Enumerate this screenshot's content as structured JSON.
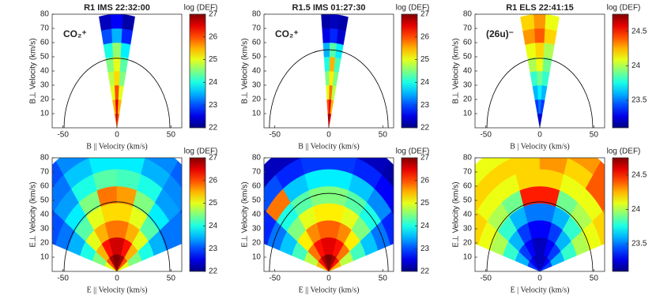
{
  "chart_data": [
    {
      "type": "polar_heatmap",
      "title": "R1 IMS 22:32:00",
      "annotation": "CO₂⁺",
      "xlabel": "B || Velocity (km/s)",
      "ylabel": "B⊥ Velocity (km/s)",
      "xlim": [
        -60,
        60
      ],
      "ylim": [
        0,
        80
      ],
      "xticks": [
        -50,
        0,
        50
      ],
      "yticks": [
        10,
        20,
        30,
        40,
        50,
        60,
        70,
        80
      ],
      "angle_edges": [
        -12,
        -4,
        4,
        12
      ],
      "radius_edges": [
        0,
        10,
        20,
        30,
        40,
        50,
        60,
        70,
        80
      ],
      "values": [
        [
          26,
          26.8,
          26
        ],
        [
          25.5,
          26.5,
          25.5
        ],
        [
          25,
          26,
          25
        ],
        [
          24.8,
          25.3,
          24.5
        ],
        [
          24.5,
          25,
          24.3
        ],
        [
          24,
          24.6,
          23.8
        ],
        [
          23,
          23.5,
          22.8
        ],
        [
          22.3,
          22.6,
          22.2
        ]
      ],
      "circle_radius": 49,
      "colorbar": {
        "label": "log (DEF)",
        "lim": [
          22,
          27
        ],
        "ticks": [
          22,
          23,
          24,
          25,
          26,
          27
        ]
      }
    },
    {
      "type": "polar_heatmap",
      "title": "R1.5 IMS 01:27:30",
      "annotation": "CO₂⁺",
      "xlabel": "B || Velocity (km/s)",
      "ylabel": "B⊥ Velocity (km/s)",
      "xlim": [
        -60,
        60
      ],
      "ylim": [
        0,
        80
      ],
      "xticks": [
        -50,
        0,
        50
      ],
      "yticks": [
        10,
        20,
        30,
        40,
        50,
        60,
        70,
        80
      ],
      "angle_edges": [
        -5,
        1,
        7,
        13
      ],
      "radius_edges": [
        0,
        10,
        20,
        30,
        40,
        50,
        60,
        70,
        80
      ],
      "values": [
        [
          26.8,
          27,
          26.5
        ],
        [
          26,
          26.5,
          25.5
        ],
        [
          25,
          25.8,
          24.8
        ],
        [
          24.5,
          25.2,
          24.5
        ],
        [
          24,
          25.5,
          24.2
        ],
        [
          23.5,
          24.3,
          23.8
        ],
        [
          22.5,
          22.8,
          22.4
        ],
        [
          22.2,
          22.3,
          22.2
        ]
      ],
      "circle_radius": 55,
      "colorbar": {
        "label": "log (DEF)",
        "lim": [
          22,
          27
        ],
        "ticks": [
          22,
          23,
          24,
          25,
          26,
          27
        ]
      }
    },
    {
      "type": "polar_heatmap",
      "title": "R1 ELS 22:41:15",
      "annotation": "(26u)⁻",
      "xlabel": "B | Velocity (km/s)",
      "ylabel": "B⊥ Velocity (km/s)",
      "xlim": [
        -60,
        60
      ],
      "ylim": [
        0,
        80
      ],
      "xticks": [
        -50,
        0,
        50
      ],
      "yticks": [
        10,
        20,
        30,
        40,
        50,
        60,
        70,
        80
      ],
      "angle_edges": [
        -13,
        -4,
        4,
        13
      ],
      "radius_edges": [
        0,
        10,
        20,
        30,
        40,
        50,
        60,
        70,
        80
      ],
      "values": [
        [
          23.2,
          23.3,
          23.2
        ],
        [
          23.4,
          23.5,
          23.4
        ],
        [
          23.6,
          23.7,
          23.6
        ],
        [
          23.8,
          23.9,
          23.8
        ],
        [
          24,
          24.1,
          23.9
        ],
        [
          24.1,
          24.2,
          24
        ],
        [
          24.3,
          24.4,
          24.2
        ],
        [
          24.2,
          24.3,
          24.1
        ]
      ],
      "circle_radius": 49,
      "colorbar": {
        "label": "log (DEF)",
        "lim": [
          23.1,
          24.75
        ],
        "ticks": [
          23.5,
          24,
          24.5
        ]
      }
    },
    {
      "type": "polar_heatmap",
      "xlabel": "E || Velocity (km/s)",
      "ylabel": "E⊥ Velocity (km/s)",
      "xlim": [
        -60,
        60
      ],
      "ylim": [
        0,
        80
      ],
      "xticks": [
        -50,
        0,
        50
      ],
      "yticks": [
        10,
        20,
        30,
        40,
        50,
        60,
        70,
        80
      ],
      "angle_edges": [
        -72,
        -54,
        -36,
        -18,
        0,
        18,
        36,
        54,
        72
      ],
      "radius_edges": [
        0,
        12,
        24,
        36,
        48,
        60,
        72,
        84,
        96
      ],
      "values": [
        [
          25,
          26,
          26.8,
          27,
          27,
          26.8,
          26,
          25
        ],
        [
          24.5,
          25.5,
          26.3,
          26.6,
          26.6,
          26.3,
          25.5,
          24.5
        ],
        [
          24,
          25,
          25.5,
          25.8,
          25.8,
          25.5,
          25,
          24
        ],
        [
          23.5,
          24.3,
          25,
          25.3,
          25.3,
          25,
          24.3,
          23.5
        ],
        [
          23.2,
          23.8,
          24.5,
          25.8,
          25.6,
          24.5,
          23.8,
          23.2
        ],
        [
          23,
          23.4,
          24,
          24.3,
          24.2,
          24,
          23.4,
          23.2
        ],
        [
          22.9,
          23.2,
          23.6,
          23.8,
          23.8,
          23.5,
          23.3,
          23
        ],
        [
          22.8,
          23,
          23.3,
          23.5,
          23.4,
          23.3,
          23.1,
          22.9
        ]
      ],
      "circle_radius": 49,
      "colorbar": {
        "label": "log (DEF)",
        "lim": [
          22,
          27
        ],
        "ticks": [
          22,
          23,
          24,
          25,
          26,
          27
        ]
      }
    },
    {
      "type": "polar_heatmap",
      "xlabel": "E || Velocity (km/s)",
      "ylabel": "E⊥ Velocity (km/s)",
      "xlim": [
        -60,
        60
      ],
      "ylim": [
        0,
        80
      ],
      "xticks": [
        -50,
        0,
        50
      ],
      "yticks": [
        10,
        20,
        30,
        40,
        50,
        60,
        70,
        80
      ],
      "angle_edges": [
        -72,
        -54,
        -36,
        -18,
        0,
        18,
        36,
        54,
        72
      ],
      "radius_edges": [
        0,
        12,
        24,
        36,
        48,
        60,
        72,
        84,
        96
      ],
      "values": [
        [
          25.5,
          26.3,
          26.8,
          27,
          27,
          26.8,
          26.3,
          25.5
        ],
        [
          24.8,
          25.8,
          26.3,
          26.5,
          26.5,
          26.3,
          25.8,
          24.8
        ],
        [
          24.2,
          25.2,
          25.7,
          25.9,
          25.9,
          25.7,
          25.2,
          24.2
        ],
        [
          23.6,
          24.5,
          25,
          25.2,
          25.2,
          25,
          24.5,
          23.6
        ],
        [
          23.2,
          24,
          24.3,
          24.5,
          24.5,
          24.3,
          24,
          23.2
        ],
        [
          22.8,
          25.8,
          23.6,
          23.8,
          23.8,
          23.6,
          23.3,
          22.8
        ],
        [
          22.4,
          23,
          22.8,
          22.9,
          22.9,
          22.8,
          22.6,
          22.4
        ],
        [
          22.2,
          22.3,
          22.3,
          22.3,
          22.3,
          22.3,
          22.2,
          22.2
        ]
      ],
      "circle_radius": 55,
      "colorbar": {
        "label": "log (DEF)",
        "lim": [
          22,
          27
        ],
        "ticks": [
          22,
          23,
          24,
          25,
          26,
          27
        ]
      }
    },
    {
      "type": "polar_heatmap",
      "xlabel": "E | Velocity (km/s)",
      "ylabel": "E⊥ Velocity (km/s)",
      "xlim": [
        -60,
        60
      ],
      "ylim": [
        0,
        80
      ],
      "xticks": [
        -50,
        0,
        50
      ],
      "yticks": [
        10,
        20,
        30,
        40,
        50,
        60,
        70,
        80
      ],
      "angle_edges": [
        -72,
        -54,
        -36,
        -18,
        0,
        18,
        36,
        54,
        72
      ],
      "radius_edges": [
        0,
        12,
        24,
        36,
        48,
        60,
        72,
        84,
        96
      ],
      "values": [
        [
          23.4,
          23.3,
          23.2,
          23.2,
          23.2,
          23.2,
          23.3,
          23.4
        ],
        [
          23.6,
          23.4,
          23.3,
          23.2,
          23.2,
          23.3,
          23.4,
          23.6
        ],
        [
          23.8,
          23.6,
          23.4,
          23.3,
          23.3,
          23.4,
          23.6,
          23.8
        ],
        [
          24,
          23.8,
          23.6,
          23.5,
          23.5,
          23.6,
          23.8,
          24
        ],
        [
          24.1,
          24,
          23.9,
          24.5,
          24.5,
          23.9,
          24,
          24.1
        ],
        [
          24.2,
          24.1,
          24.1,
          24.2,
          24.2,
          24.1,
          24.1,
          24.2
        ],
        [
          24.1,
          24.2,
          24.2,
          24.2,
          24.3,
          24.2,
          24.4,
          24.3
        ],
        [
          24,
          24.1,
          24.1,
          24.2,
          24.2,
          24.3,
          24.4,
          24.5
        ]
      ],
      "circle_radius": 49,
      "colorbar": {
        "label": "log (DEF)",
        "lim": [
          23.1,
          24.75
        ],
        "ticks": [
          23.5,
          24,
          24.5
        ]
      }
    }
  ]
}
